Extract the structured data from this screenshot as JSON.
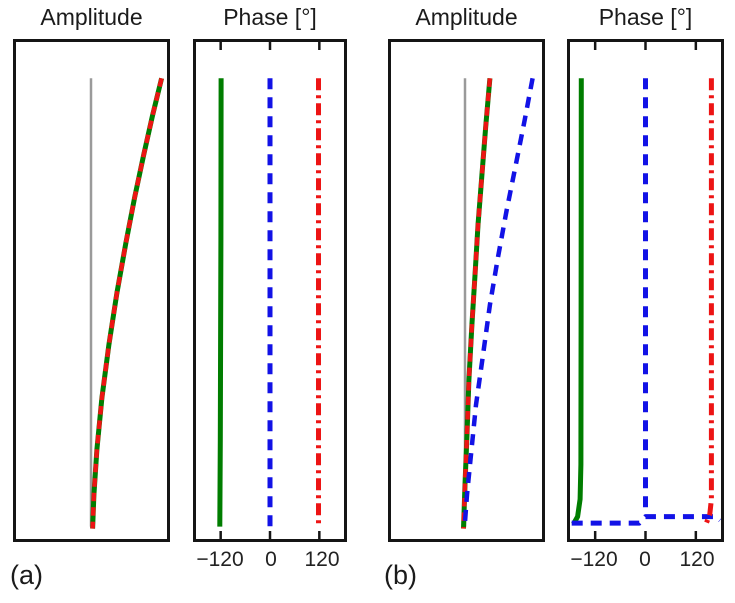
{
  "panel_labels": {
    "a": "(a)",
    "b": "(b)"
  },
  "colors": {
    "green": "#007d00",
    "blue": "#1212e6",
    "red": "#ed1414",
    "gray": "#9a9a9a",
    "frame": "#151515",
    "background": "#ffffff"
  },
  "chart_data": [
    {
      "id": "a-amplitude",
      "type": "line",
      "title": "Amplitude",
      "xlabel": "",
      "ylabel": "",
      "xlim": [
        0,
        1
      ],
      "xticks": [],
      "xticklabels": [],
      "grid": false,
      "legend": "none",
      "note": "depth-like vertical axis, t=0 top to t=1 bottom; x normalized amplitude",
      "series": [
        {
          "name": "reference-gray-line",
          "color": "#9a9a9a",
          "style": "solid",
          "width": 2.5,
          "paths": [
            [
              [
                0.497,
                0.073
              ],
              [
                0.497,
                0.975
              ]
            ]
          ]
        },
        {
          "name": "mode-shape-green-solid",
          "color": "#007d00",
          "style": "solid",
          "width": 5,
          "paths": [
            [
              [
                0.964,
                0.073
              ],
              [
                0.904,
                0.148
              ],
              [
                0.845,
                0.228
              ],
              [
                0.786,
                0.312
              ],
              [
                0.727,
                0.405
              ],
              [
                0.668,
                0.505
              ],
              [
                0.615,
                0.609
              ],
              [
                0.569,
                0.716
              ],
              [
                0.536,
                0.82
              ],
              [
                0.516,
                0.911
              ],
              [
                0.507,
                0.979
              ]
            ]
          ]
        },
        {
          "name": "mode-shape-red-dashed",
          "color": "#ed1414",
          "style": "dashed2",
          "width": 4.5,
          "paths": [
            [
              [
                0.964,
                0.073
              ],
              [
                0.904,
                0.148
              ],
              [
                0.845,
                0.228
              ],
              [
                0.786,
                0.312
              ],
              [
                0.727,
                0.405
              ],
              [
                0.668,
                0.505
              ],
              [
                0.615,
                0.609
              ],
              [
                0.569,
                0.716
              ],
              [
                0.536,
                0.82
              ],
              [
                0.516,
                0.911
              ],
              [
                0.507,
                0.979
              ]
            ]
          ]
        }
      ]
    },
    {
      "id": "a-phase",
      "type": "line",
      "title": "Phase [°]",
      "xlabel": "",
      "ylabel": "",
      "xlim": [
        -180,
        180
      ],
      "xticks": [
        -120,
        0,
        120
      ],
      "xticklabels": [
        "−120",
        "0",
        "120"
      ],
      "grid": false,
      "legend": "none",
      "series": [
        {
          "name": "phase-green-solid",
          "color": "#007d00",
          "style": "solid",
          "width": 5,
          "paths": [
            [
              [
                -119,
                0.073
              ],
              [
                -119.5,
                0.4
              ],
              [
                -121,
                0.8
              ],
              [
                -122,
                0.975
              ]
            ]
          ]
        },
        {
          "name": "phase-blue-dashed",
          "color": "#1212e6",
          "style": "dashed",
          "width": 5,
          "paths": [
            [
              [
                0,
                0.073
              ],
              [
                0,
                0.975
              ]
            ]
          ]
        },
        {
          "name": "phase-red-dashdot",
          "color": "#ed1414",
          "style": "dashdot",
          "width": 5,
          "paths": [
            [
              [
                118,
                0.073
              ],
              [
                118,
                0.975
              ]
            ]
          ]
        }
      ]
    },
    {
      "id": "b-amplitude",
      "type": "line",
      "title": "Amplitude",
      "xlabel": "",
      "ylabel": "",
      "xlim": [
        0,
        1
      ],
      "xticks": [],
      "xticklabels": [],
      "grid": false,
      "legend": "none",
      "series": [
        {
          "name": "reference-gray-line",
          "color": "#9a9a9a",
          "style": "solid",
          "width": 2.5,
          "paths": [
            [
              [
                0.49,
                0.073
              ],
              [
                0.49,
                0.975
              ]
            ]
          ]
        },
        {
          "name": "mode-shape-green-solid",
          "color": "#007d00",
          "style": "solid",
          "width": 5,
          "paths": [
            [
              [
                0.655,
                0.073
              ],
              [
                0.628,
                0.168
              ],
              [
                0.602,
                0.268
              ],
              [
                0.576,
                0.368
              ],
              [
                0.556,
                0.469
              ],
              [
                0.536,
                0.569
              ],
              [
                0.516,
                0.68
              ],
              [
                0.503,
                0.79
              ],
              [
                0.49,
                0.89
              ],
              [
                0.48,
                0.979
              ]
            ]
          ]
        },
        {
          "name": "mode-shape-red-dashed",
          "color": "#ed1414",
          "style": "dashed2",
          "width": 4.5,
          "paths": [
            [
              [
                0.655,
                0.073
              ],
              [
                0.628,
                0.168
              ],
              [
                0.602,
                0.268
              ],
              [
                0.576,
                0.368
              ],
              [
                0.556,
                0.469
              ],
              [
                0.536,
                0.569
              ],
              [
                0.516,
                0.68
              ],
              [
                0.503,
                0.79
              ],
              [
                0.49,
                0.89
              ],
              [
                0.48,
                0.979
              ]
            ]
          ]
        },
        {
          "name": "mode-shape-blue-dashed",
          "color": "#1212e6",
          "style": "dashed",
          "width": 4.5,
          "paths": [
            [
              [
                0.938,
                0.073
              ],
              [
                0.885,
                0.158
              ],
              [
                0.826,
                0.248
              ],
              [
                0.766,
                0.338
              ],
              [
                0.707,
                0.435
              ],
              [
                0.655,
                0.529
              ],
              [
                0.609,
                0.63
              ],
              [
                0.563,
                0.73
              ],
              [
                0.53,
                0.83
              ],
              [
                0.503,
                0.911
              ],
              [
                0.487,
                0.979
              ]
            ]
          ]
        }
      ]
    },
    {
      "id": "b-phase",
      "type": "line",
      "title": "Phase [°]",
      "xlabel": "",
      "ylabel": "",
      "xlim": [
        -180,
        180
      ],
      "xticks": [
        -120,
        0,
        120
      ],
      "xticklabels": [
        "−120",
        "0",
        "120"
      ],
      "grid": false,
      "legend": "none",
      "series": [
        {
          "name": "phase-green-solid",
          "color": "#007d00",
          "style": "solid",
          "width": 5,
          "paths": [
            [
              [
                -153,
                0.073
              ],
              [
                -153.5,
                0.55
              ],
              [
                -154,
                0.85
              ],
              [
                -156,
                0.92
              ],
              [
                -162,
                0.955
              ],
              [
                -172,
                0.97
              ]
            ]
          ]
        },
        {
          "name": "phase-blue-dashed",
          "color": "#1212e6",
          "style": "dashed",
          "width": 5,
          "paths": [
            [
              [
                0,
                0.073
              ],
              [
                0,
                0.945
              ]
            ],
            [
              [
                -176,
                0.968
              ],
              [
                -15,
                0.968
              ],
              [
                0,
                0.955
              ],
              [
                168,
                0.955
              ],
              [
                178,
                0.962
              ]
            ]
          ]
        },
        {
          "name": "phase-red-dashdot",
          "color": "#ed1414",
          "style": "dashdot",
          "width": 5,
          "paths": [
            [
              [
                157,
                0.073
              ],
              [
                157,
                0.92
              ],
              [
                153,
                0.952
              ],
              [
                145,
                0.968
              ]
            ]
          ]
        }
      ]
    }
  ]
}
